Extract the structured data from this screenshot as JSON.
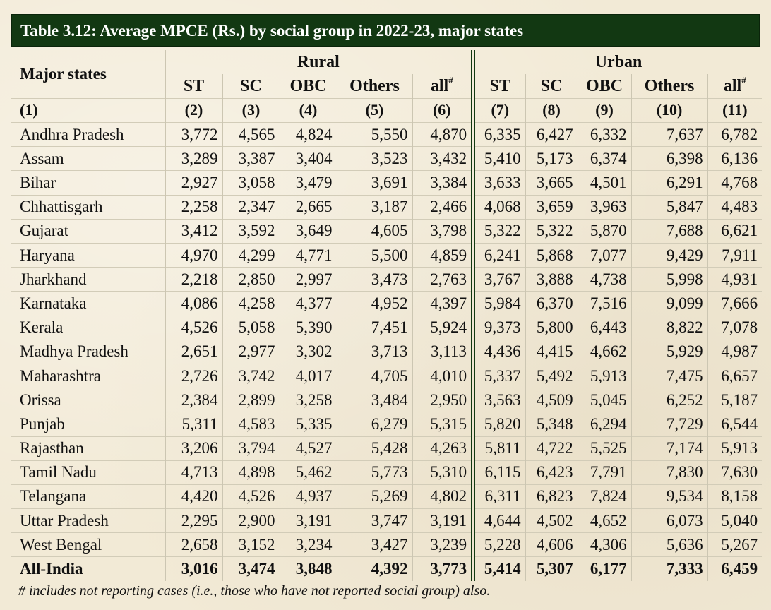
{
  "title": "Table 3.12:  Average MPCE (Rs.) by social group in 2022-23, major states",
  "row_header": "Major states",
  "groups": {
    "rural": "Rural",
    "urban": "Urban"
  },
  "columns": [
    "ST",
    "SC",
    "OBC",
    "Others",
    "all",
    "ST",
    "SC",
    "OBC",
    "Others",
    "all"
  ],
  "all_superscript": "#",
  "column_numbers": [
    "(1)",
    "(2)",
    "(3)",
    "(4)",
    "(5)",
    "(6)",
    "(7)",
    "(8)",
    "(9)",
    "(10)",
    "(11)"
  ],
  "rows": [
    {
      "state": "Andhra Pradesh",
      "values": [
        "3,772",
        "4,565",
        "4,824",
        "5,550",
        "4,870",
        "6,335",
        "6,427",
        "6,332",
        "7,637",
        "6,782"
      ]
    },
    {
      "state": "Assam",
      "values": [
        "3,289",
        "3,387",
        "3,404",
        "3,523",
        "3,432",
        "5,410",
        "5,173",
        "6,374",
        "6,398",
        "6,136"
      ]
    },
    {
      "state": "Bihar",
      "values": [
        "2,927",
        "3,058",
        "3,479",
        "3,691",
        "3,384",
        "3,633",
        "3,665",
        "4,501",
        "6,291",
        "4,768"
      ]
    },
    {
      "state": "Chhattisgarh",
      "values": [
        "2,258",
        "2,347",
        "2,665",
        "3,187",
        "2,466",
        "4,068",
        "3,659",
        "3,963",
        "5,847",
        "4,483"
      ]
    },
    {
      "state": "Gujarat",
      "values": [
        "3,412",
        "3,592",
        "3,649",
        "4,605",
        "3,798",
        "5,322",
        "5,322",
        "5,870",
        "7,688",
        "6,621"
      ]
    },
    {
      "state": "Haryana",
      "values": [
        "4,970",
        "4,299",
        "4,771",
        "5,500",
        "4,859",
        "6,241",
        "5,868",
        "7,077",
        "9,429",
        "7,911"
      ]
    },
    {
      "state": "Jharkhand",
      "values": [
        "2,218",
        "2,850",
        "2,997",
        "3,473",
        "2,763",
        "3,767",
        "3,888",
        "4,738",
        "5,998",
        "4,931"
      ]
    },
    {
      "state": "Karnataka",
      "values": [
        "4,086",
        "4,258",
        "4,377",
        "4,952",
        "4,397",
        "5,984",
        "6,370",
        "7,516",
        "9,099",
        "7,666"
      ]
    },
    {
      "state": "Kerala",
      "values": [
        "4,526",
        "5,058",
        "5,390",
        "7,451",
        "5,924",
        "9,373",
        "5,800",
        "6,443",
        "8,822",
        "7,078"
      ]
    },
    {
      "state": "Madhya Pradesh",
      "values": [
        "2,651",
        "2,977",
        "3,302",
        "3,713",
        "3,113",
        "4,436",
        "4,415",
        "4,662",
        "5,929",
        "4,987"
      ]
    },
    {
      "state": "Maharashtra",
      "values": [
        "2,726",
        "3,742",
        "4,017",
        "4,705",
        "4,010",
        "5,337",
        "5,492",
        "5,913",
        "7,475",
        "6,657"
      ]
    },
    {
      "state": "Orissa",
      "values": [
        "2,384",
        "2,899",
        "3,258",
        "3,484",
        "2,950",
        "3,563",
        "4,509",
        "5,045",
        "6,252",
        "5,187"
      ]
    },
    {
      "state": "Punjab",
      "values": [
        "5,311",
        "4,583",
        "5,335",
        "6,279",
        "5,315",
        "5,820",
        "5,348",
        "6,294",
        "7,729",
        "6,544"
      ]
    },
    {
      "state": "Rajasthan",
      "values": [
        "3,206",
        "3,794",
        "4,527",
        "5,428",
        "4,263",
        "5,811",
        "4,722",
        "5,525",
        "7,174",
        "5,913"
      ]
    },
    {
      "state": "Tamil Nadu",
      "values": [
        "4,713",
        "4,898",
        "5,462",
        "5,773",
        "5,310",
        "6,115",
        "6,423",
        "7,791",
        "7,830",
        "7,630"
      ]
    },
    {
      "state": "Telangana",
      "values": [
        "4,420",
        "4,526",
        "4,937",
        "5,269",
        "4,802",
        "6,311",
        "6,823",
        "7,824",
        "9,534",
        "8,158"
      ]
    },
    {
      "state": "Uttar Pradesh",
      "values": [
        "2,295",
        "2,900",
        "3,191",
        "3,747",
        "3,191",
        "4,644",
        "4,502",
        "4,652",
        "6,073",
        "5,040"
      ]
    },
    {
      "state": "West Bengal",
      "values": [
        "2,658",
        "3,152",
        "3,234",
        "3,427",
        "3,239",
        "5,228",
        "4,606",
        "4,306",
        "5,636",
        "5,267"
      ]
    },
    {
      "state": "All-India",
      "values": [
        "3,016",
        "3,474",
        "3,848",
        "4,392",
        "3,773",
        "5,414",
        "5,307",
        "6,177",
        "7,333",
        "6,459"
      ]
    }
  ],
  "footnote": "# includes not reporting cases (i.e., those who have not reported social group) also.",
  "colors": {
    "title_bg": "#123812",
    "page_bg": "#f2ead6"
  }
}
